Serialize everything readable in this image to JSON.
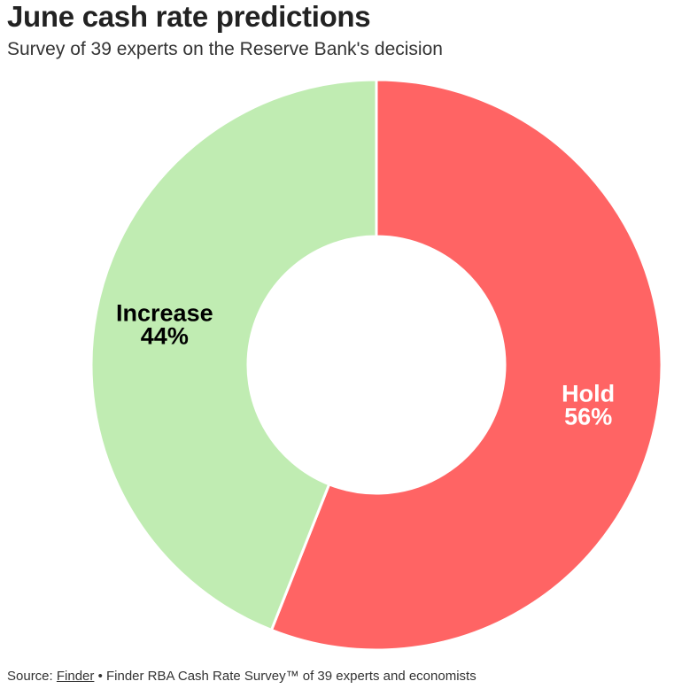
{
  "header": {
    "title": "June cash rate predictions",
    "subtitle": "Survey of 39 experts on the Reserve Bank's decision"
  },
  "footer": {
    "source_prefix": "Source: ",
    "source_link": "Finder",
    "source_rest": " • Finder RBA Cash Rate Survey™ of 39 experts and economists"
  },
  "colors": {
    "hold": "#ff6464",
    "increase": "#c0ecb2"
  },
  "chart_data": {
    "type": "pie",
    "donut": true,
    "title": "June cash rate predictions",
    "subtitle": "Survey of 39 experts on the Reserve Bank's decision",
    "slices": [
      {
        "label": "Hold",
        "value": 56,
        "value_label": "56%",
        "color": "#ff6464",
        "label_color": "#ffffff"
      },
      {
        "label": "Increase",
        "value": 44,
        "value_label": "44%",
        "color": "#c0ecb2",
        "label_color": "#000000"
      }
    ]
  }
}
